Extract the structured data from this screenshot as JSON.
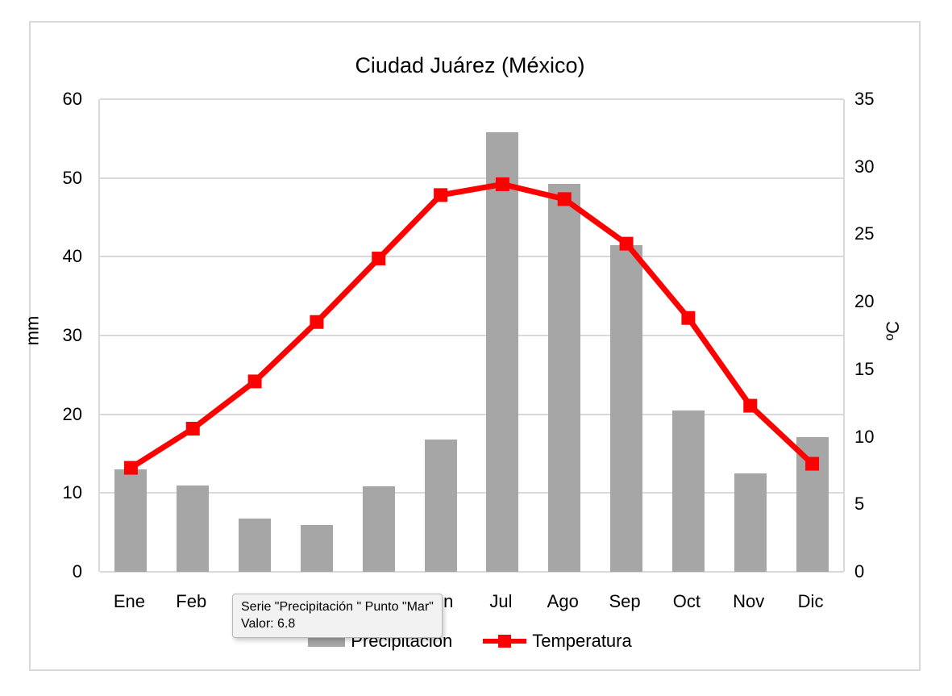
{
  "title": "Ciudad Juárez (México)",
  "chart_data": {
    "type": "bar",
    "subtype": "combo-bar-line",
    "categories": [
      "Ene",
      "Feb",
      "Mar",
      "Abr",
      "May",
      "Jun",
      "Jul",
      "Ago",
      "Sep",
      "Oct",
      "Nov",
      "Dic"
    ],
    "series": [
      {
        "name": "Precipitación",
        "type": "bar",
        "axis": "left",
        "unit": "mm",
        "color": "#a6a6a6",
        "values": [
          13,
          11,
          6.8,
          5.9,
          10.9,
          16.8,
          55.8,
          49.3,
          41.5,
          20.5,
          12.5,
          17.1
        ]
      },
      {
        "name": "Temperatura",
        "type": "line",
        "axis": "right",
        "unit": "°C",
        "color": "#ff0000",
        "values": [
          7.7,
          10.6,
          14.1,
          18.5,
          23.2,
          27.9,
          28.7,
          27.6,
          24.3,
          18.8,
          12.3,
          8.0
        ]
      }
    ],
    "left_axis": {
      "label": "mm",
      "min": 0,
      "max": 60,
      "step": 10,
      "ticks": [
        60,
        50,
        40,
        30,
        20,
        10,
        0
      ]
    },
    "right_axis": {
      "label": "ºC",
      "min": 0,
      "max": 35,
      "step": 5,
      "ticks": [
        35,
        30,
        25,
        20,
        15,
        10,
        5,
        0
      ]
    },
    "grid": true,
    "legend_position": "bottom"
  },
  "legend": {
    "items": [
      {
        "label": "Precipitación",
        "swatch": "bar"
      },
      {
        "label": "Temperatura",
        "swatch": "line"
      }
    ]
  },
  "tooltip": {
    "line1": "Serie \"Precipitación \" Punto \"Mar\"",
    "line2": "Valor: 6.8"
  },
  "colors": {
    "bar": "#a6a6a6",
    "line": "#ff0000",
    "grid": "#d9d9d9",
    "chart_border": "#d9d9d9",
    "tooltip_bg": "#f2f2f2",
    "tooltip_border": "#b7b7b7",
    "text": "#000000"
  }
}
